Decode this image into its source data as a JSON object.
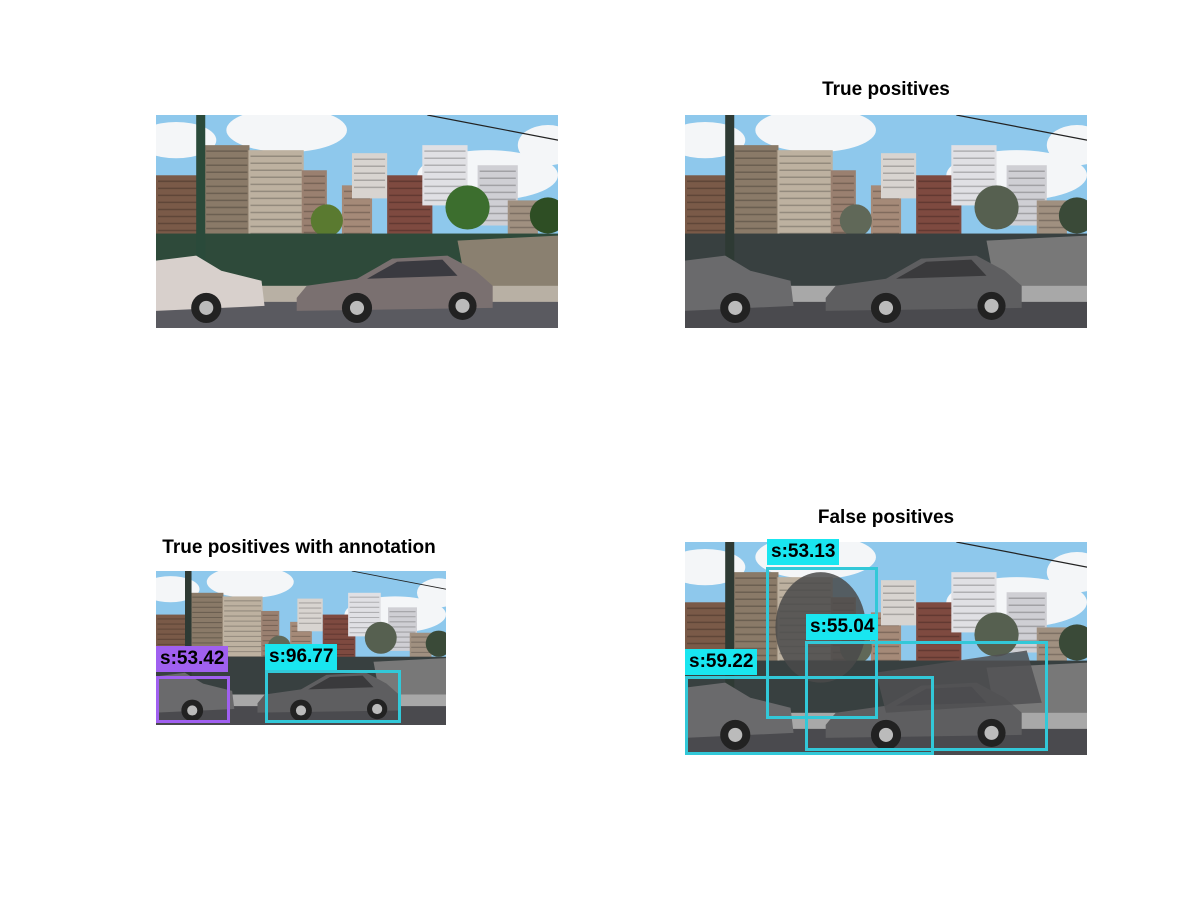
{
  "panels": {
    "original": {
      "title": ""
    },
    "true_positives": {
      "title": "True positives"
    },
    "annotated": {
      "title": "True positives with annotation",
      "detections": [
        {
          "label": "s:53.42",
          "color": "#a060f0",
          "kind": "annotation"
        },
        {
          "label": "s:96.77",
          "color": "#19e6f0",
          "kind": "detection"
        }
      ]
    },
    "false_positives": {
      "title": "False positives",
      "detections": [
        {
          "label": "s:53.13",
          "color": "#19e6f0"
        },
        {
          "label": "s:55.04",
          "color": "#19e6f0"
        },
        {
          "label": "s:59.22",
          "color": "#19e6f0"
        }
      ]
    }
  },
  "colors": {
    "detection": "#19e6f0",
    "annotation": "#a060f0",
    "box_stroke": "#32c8d8"
  }
}
